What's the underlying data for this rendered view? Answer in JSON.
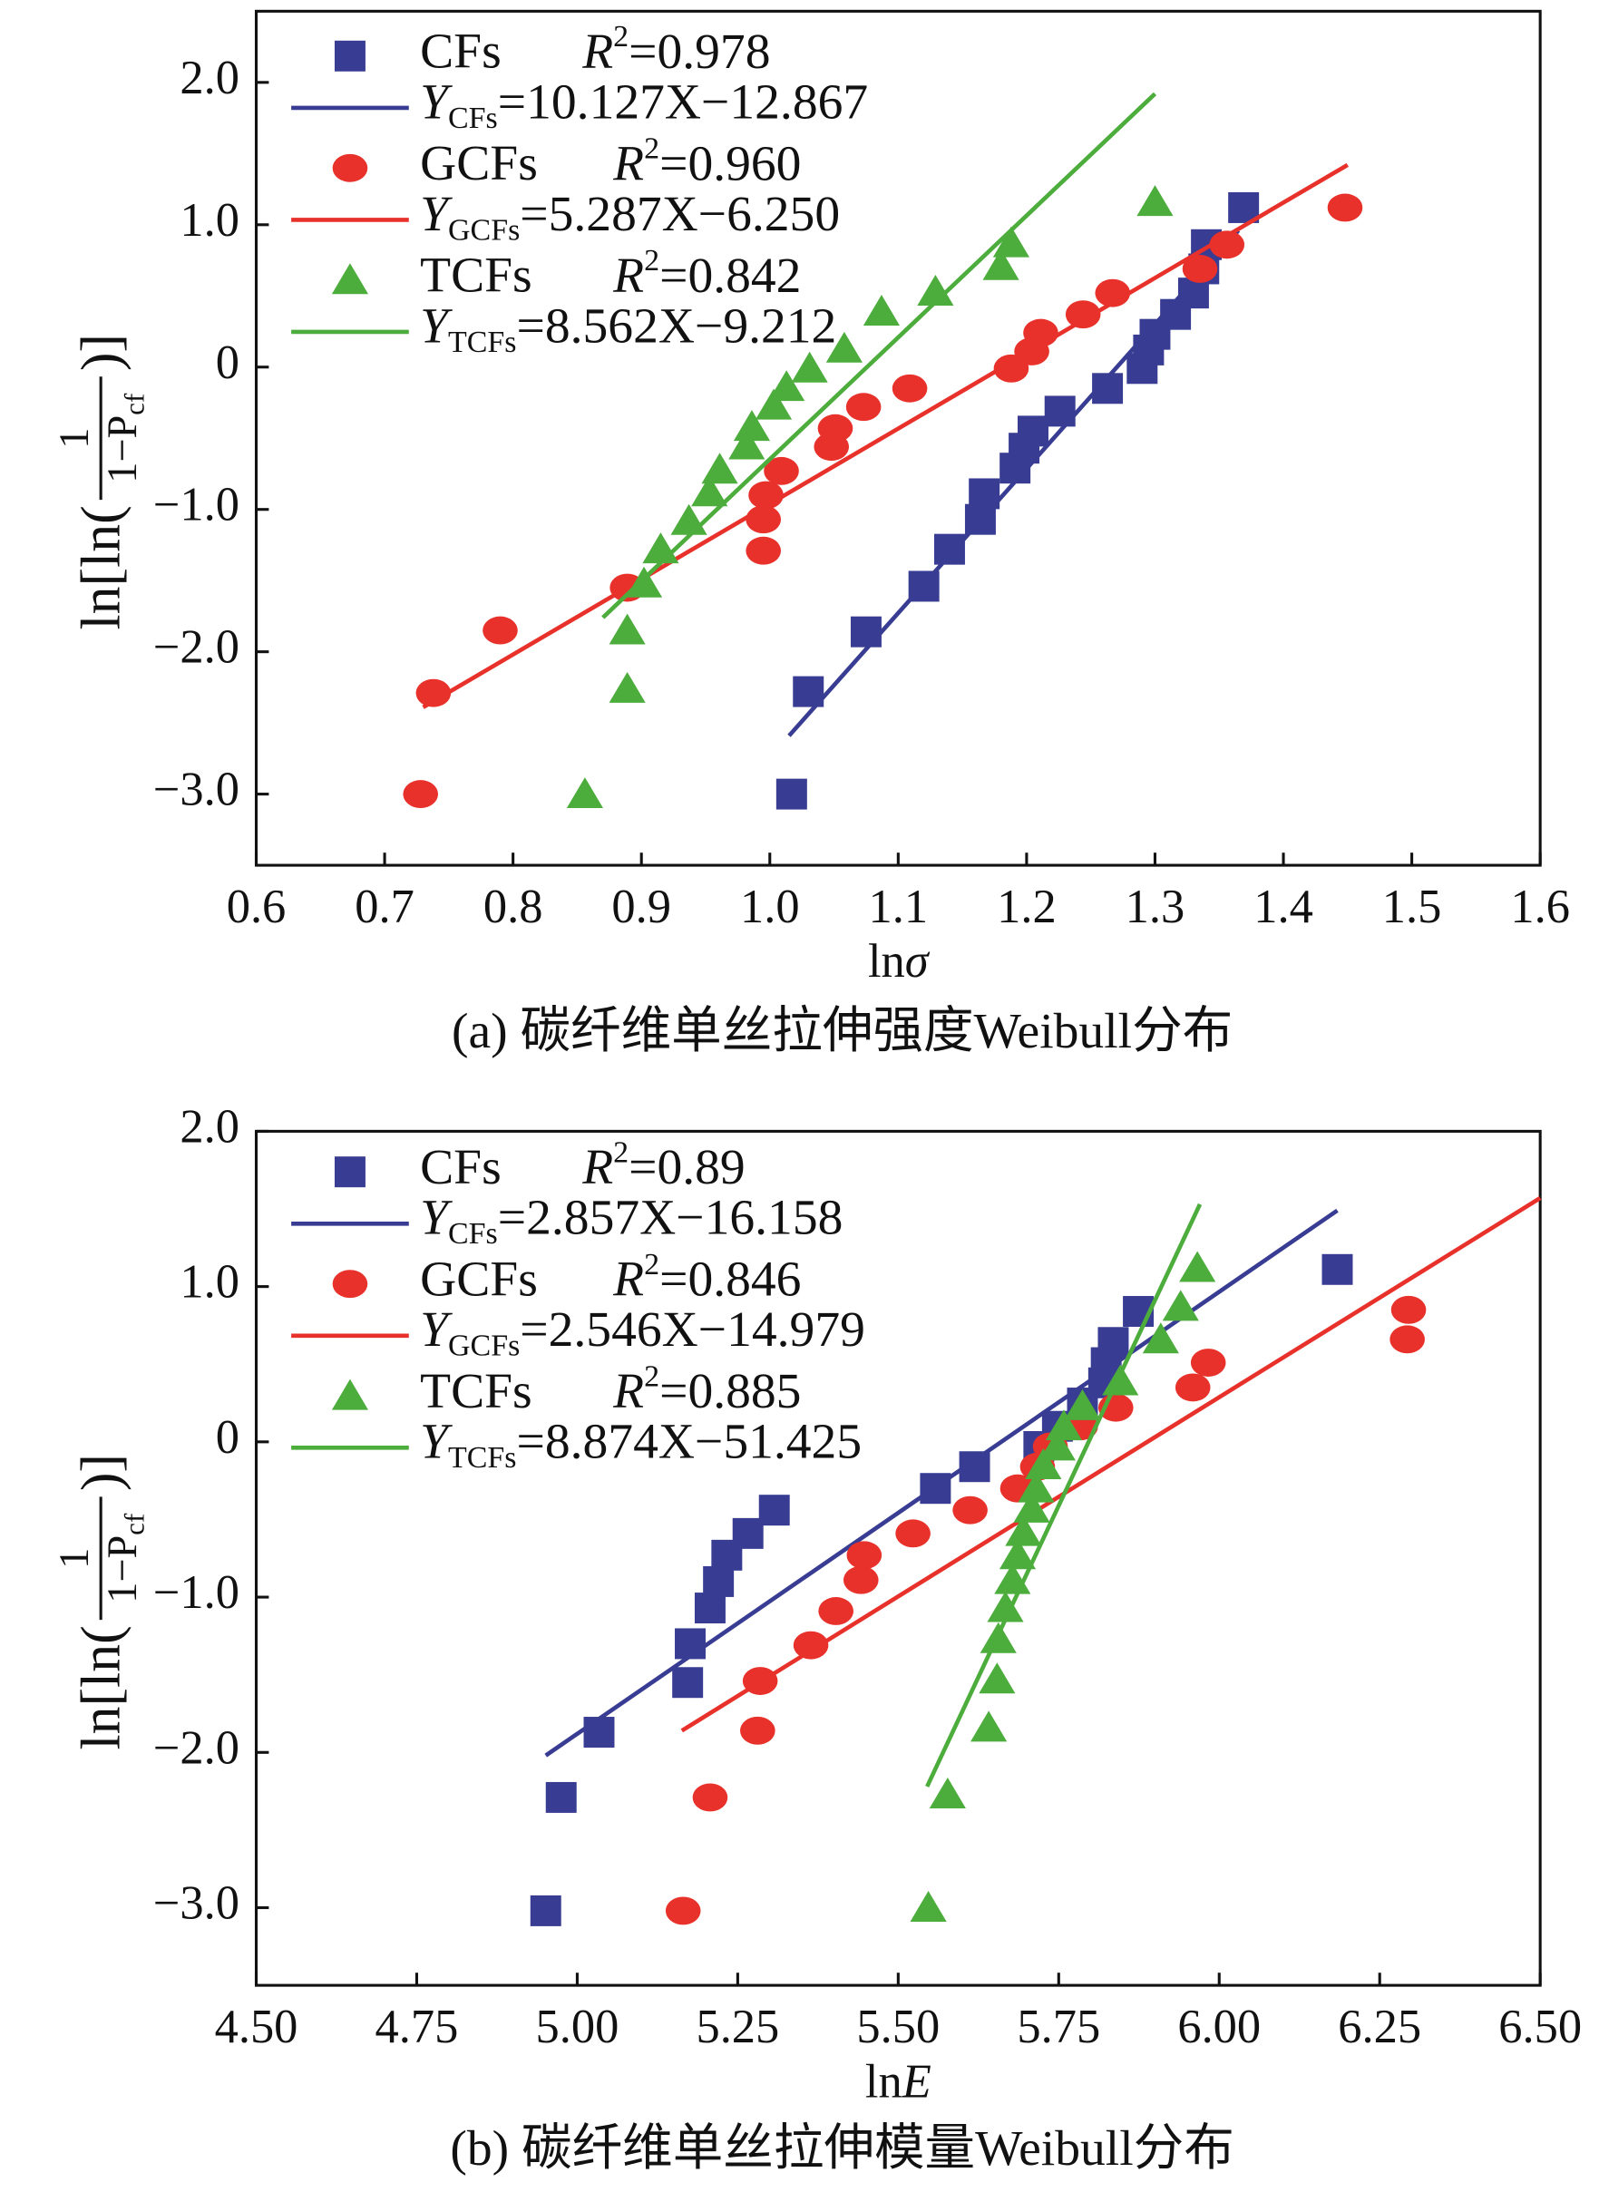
{
  "chart_data": [
    {
      "type": "scatter",
      "caption": "(a) 碳纤维单丝拉伸强度Weibull分布",
      "xlabel": {
        "pre": "ln",
        "var": "σ"
      },
      "ylabel": {
        "pre": "ln[ln(",
        "num": "1",
        "den": "1−P",
        "den_sub": "cf",
        "post": ")]"
      },
      "xlim": [
        0.6,
        1.6
      ],
      "ylim": [
        -3.5,
        2.5
      ],
      "xticks": [
        0.6,
        0.7,
        0.8,
        0.9,
        {
          "value": 1,
          "label": "1.0"
        },
        1.1,
        1.2,
        1.3,
        1.4,
        1.5,
        1.6
      ],
      "yticks": [
        {
          "value": 2,
          "label": "2.0"
        },
        {
          "value": 1,
          "label": "1.0"
        },
        0,
        {
          "value": -1,
          "label": "−1.0"
        },
        {
          "value": -2,
          "label": "−2.0"
        },
        {
          "value": -3,
          "label": "−3.0"
        }
      ],
      "series": [
        {
          "name": "CFs",
          "color": "#383c92",
          "marker": "square",
          "r2_label": {
            "pre": "R",
            "sup": "2",
            "post": "=0.978"
          },
          "fit_label": {
            "pre": "Y",
            "sub": "CFs",
            "post": "=10.127X−12.867"
          },
          "x": [
            1.017,
            1.03,
            1.075,
            1.12,
            1.14,
            1.164,
            1.167,
            1.191,
            1.198,
            1.205,
            1.226,
            1.263,
            1.29,
            1.295,
            1.3,
            1.316,
            1.33,
            1.338,
            1.34,
            1.369
          ],
          "values": [
            -3.0,
            -2.28,
            -1.86,
            -1.54,
            -1.28,
            -1.07,
            -0.89,
            -0.71,
            -0.57,
            -0.45,
            -0.31,
            -0.15,
            -0.01,
            0.12,
            0.23,
            0.37,
            0.52,
            0.69,
            0.86,
            1.12
          ],
          "fit": {
            "x": [
              1.015,
              1.365
            ],
            "y": [
              -2.59,
              0.96
            ]
          }
        },
        {
          "name": "GCFs",
          "color": "#e8312a",
          "marker": "circle",
          "r2_label": {
            "pre": "R",
            "sup": "2",
            "post": "=0.960"
          },
          "fit_label": {
            "pre": "Y",
            "sub": "GCFs",
            "post": "=5.287X−6.250"
          },
          "x": [
            0.728,
            0.738,
            0.79,
            0.889,
            0.995,
            0.995,
            0.997,
            1.009,
            1.048,
            1.051,
            1.073,
            1.109,
            1.188,
            1.204,
            1.211,
            1.244,
            1.267,
            1.335,
            1.356,
            1.448
          ],
          "values": [
            -3.0,
            -2.29,
            -1.85,
            -1.55,
            -1.29,
            -1.07,
            -0.9,
            -0.73,
            -0.56,
            -0.43,
            -0.28,
            -0.15,
            -0.01,
            0.11,
            0.24,
            0.37,
            0.52,
            0.69,
            0.86,
            1.12
          ],
          "fit": {
            "x": [
              0.73,
              1.45
            ],
            "y": [
              -2.39,
              1.42
            ]
          }
        },
        {
          "name": "TCFs",
          "color": "#4cad3c",
          "marker": "triangle",
          "r2_label": {
            "pre": "R",
            "sup": "2",
            "post": "=0.842"
          },
          "fit_label": {
            "pre": "Y",
            "sub": "TCFs",
            "post": "=8.562X−9.212"
          },
          "x": [
            0.856,
            0.889,
            0.889,
            0.902,
            0.915,
            0.937,
            0.953,
            0.961,
            0.982,
            0.986,
            1.003,
            1.013,
            1.031,
            1.058,
            1.087,
            1.129,
            1.18,
            1.188,
            1.3
          ],
          "values": [
            -3.0,
            -2.26,
            -1.85,
            -1.52,
            -1.28,
            -1.08,
            -0.88,
            -0.72,
            -0.55,
            -0.42,
            -0.27,
            -0.14,
            -0.01,
            0.13,
            0.39,
            0.53,
            0.71,
            0.87,
            1.16
          ],
          "fit": {
            "x": [
              0.87,
              1.3
            ],
            "y": [
              -1.76,
              1.92
            ]
          }
        }
      ]
    },
    {
      "type": "scatter",
      "caption": "(b) 碳纤维单丝拉伸模量Weibull分布",
      "xlabel": {
        "pre": "ln",
        "var": "E"
      },
      "ylabel": {
        "pre": "ln[ln(",
        "num": "1",
        "den": "1−P",
        "den_sub": "cf",
        "post": ")]"
      },
      "xlim": [
        4.5,
        6.5
      ],
      "ylim": [
        -3.5,
        2.0
      ],
      "xticks": [
        {
          "value": 4.5,
          "label": "4.50"
        },
        4.75,
        {
          "value": 5,
          "label": "5.00"
        },
        5.25,
        {
          "value": 5.5,
          "label": "5.50"
        },
        5.75,
        {
          "value": 6,
          "label": "6.00"
        },
        6.25,
        {
          "value": 6.5,
          "label": "6.50"
        }
      ],
      "yticks": [
        {
          "value": 2,
          "label": "2.0"
        },
        {
          "value": 1,
          "label": "1.0"
        },
        0,
        {
          "value": -1,
          "label": "−1.0"
        },
        {
          "value": -2,
          "label": "−2.0"
        },
        {
          "value": -3,
          "label": "−3.0"
        }
      ],
      "series": [
        {
          "name": "CFs",
          "color": "#383c92",
          "marker": "square",
          "r2_label": {
            "pre": "R",
            "sup": "2",
            "post": "=0.89"
          },
          "fit_label": {
            "pre": "Y",
            "sub": "CFs",
            "post": "=2.857X−16.158"
          },
          "x": [
            4.951,
            4.975,
            5.034,
            5.172,
            5.176,
            5.207,
            5.22,
            5.233,
            5.266,
            5.307,
            5.558,
            5.619,
            5.719,
            5.748,
            5.787,
            5.82,
            5.824,
            5.835,
            5.874,
            6.184
          ],
          "values": [
            -3.02,
            -2.29,
            -1.87,
            -1.55,
            -1.3,
            -1.07,
            -0.9,
            -0.73,
            -0.59,
            -0.44,
            -0.3,
            -0.16,
            -0.03,
            0.1,
            0.25,
            0.38,
            0.51,
            0.64,
            0.84,
            1.11
          ],
          "fit": {
            "x": [
              4.951,
              6.184
            ],
            "y": [
              -2.02,
              1.49
            ]
          }
        },
        {
          "name": "GCFs",
          "color": "#e8312a",
          "marker": "circle",
          "r2_label": {
            "pre": "R",
            "sup": "2",
            "post": "=0.846"
          },
          "fit_label": {
            "pre": "Y",
            "sub": "GCFs",
            "post": "=2.546X−14.979"
          },
          "x": [
            5.165,
            5.207,
            5.281,
            5.285,
            5.364,
            5.403,
            5.442,
            5.447,
            5.523,
            5.612,
            5.686,
            5.717,
            5.737,
            5.784,
            5.839,
            5.959,
            5.983,
            6.293,
            6.295
          ],
          "values": [
            -3.02,
            -2.29,
            -1.86,
            -1.54,
            -1.31,
            -1.09,
            -0.89,
            -0.73,
            -0.59,
            -0.44,
            -0.3,
            -0.16,
            -0.03,
            0.1,
            0.22,
            0.35,
            0.51,
            0.66,
            0.85
          ],
          "fit": {
            "x": [
              5.163,
              6.5
            ],
            "y": [
              -1.86,
              1.57
            ]
          }
        },
        {
          "name": "TCFs",
          "color": "#4cad3c",
          "marker": "triangle",
          "r2_label": {
            "pre": "R",
            "sup": "2",
            "post": "=0.885"
          },
          "fit_label": {
            "pre": "Y",
            "sub": "TCFs",
            "post": "=8.874X−51.425"
          },
          "x": [
            5.547,
            5.577,
            5.641,
            5.654,
            5.656,
            5.667,
            5.678,
            5.686,
            5.695,
            5.708,
            5.715,
            5.726,
            5.748,
            5.758,
            5.787,
            5.846,
            5.909,
            5.94,
            5.966
          ],
          "values": [
            -3.0,
            -2.27,
            -1.84,
            -1.53,
            -1.27,
            -1.07,
            -0.89,
            -0.73,
            -0.58,
            -0.43,
            -0.3,
            -0.15,
            -0.03,
            0.1,
            0.23,
            0.39,
            0.66,
            0.87,
            1.12
          ],
          "fit": {
            "x": [
              5.545,
              5.97
            ],
            "y": [
              -2.22,
              1.53
            ]
          }
        }
      ]
    }
  ]
}
